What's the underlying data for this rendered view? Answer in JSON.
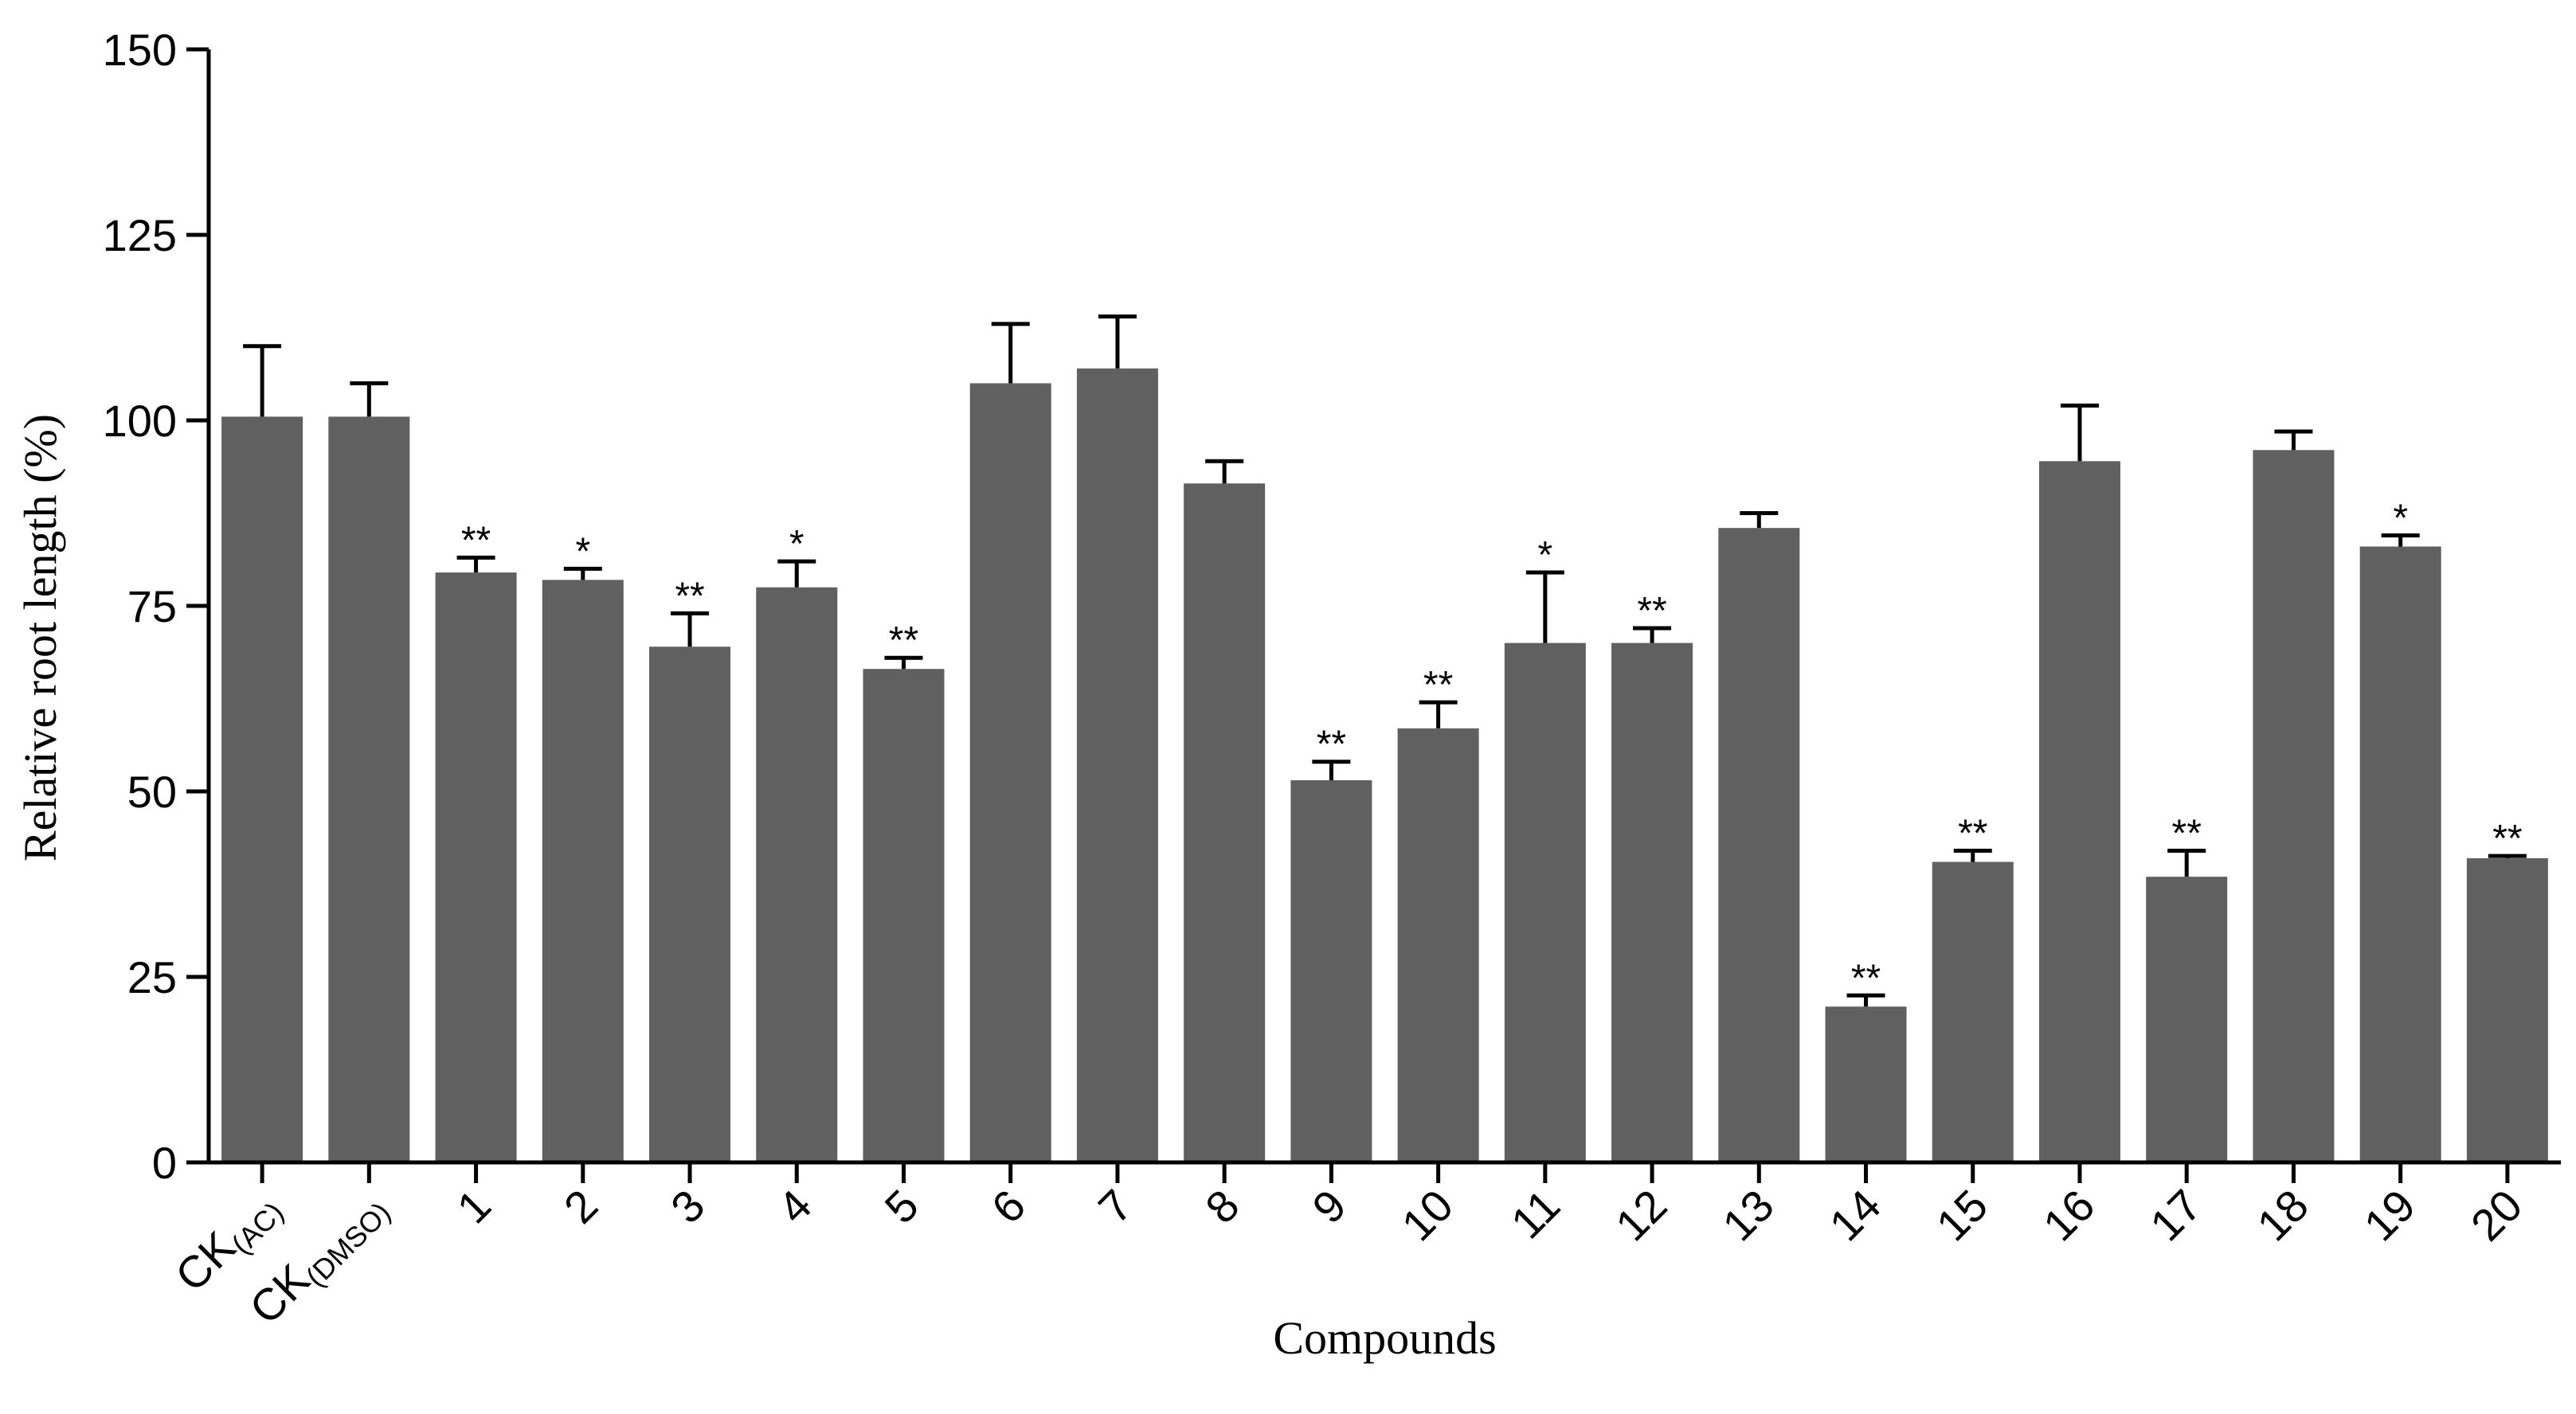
{
  "chart_data": {
    "type": "bar",
    "title": "",
    "xlabel": "Compounds",
    "ylabel": "Relative root length (%)",
    "ylim": [
      0,
      150
    ],
    "yticks": [
      0,
      25,
      50,
      75,
      100,
      125,
      150
    ],
    "grid": false,
    "bar_color": "#606060",
    "categories": [
      {
        "main": "CK",
        "sub": "(AC)"
      },
      {
        "main": "CK",
        "sub": "(DMSO)"
      },
      {
        "main": "1",
        "sub": ""
      },
      {
        "main": "2",
        "sub": ""
      },
      {
        "main": "3",
        "sub": ""
      },
      {
        "main": "4",
        "sub": ""
      },
      {
        "main": "5",
        "sub": ""
      },
      {
        "main": "6",
        "sub": ""
      },
      {
        "main": "7",
        "sub": ""
      },
      {
        "main": "8",
        "sub": ""
      },
      {
        "main": "9",
        "sub": ""
      },
      {
        "main": "10",
        "sub": ""
      },
      {
        "main": "11",
        "sub": ""
      },
      {
        "main": "12",
        "sub": ""
      },
      {
        "main": "13",
        "sub": ""
      },
      {
        "main": "14",
        "sub": ""
      },
      {
        "main": "15",
        "sub": ""
      },
      {
        "main": "16",
        "sub": ""
      },
      {
        "main": "17",
        "sub": ""
      },
      {
        "main": "18",
        "sub": ""
      },
      {
        "main": "19",
        "sub": ""
      },
      {
        "main": "20",
        "sub": ""
      }
    ],
    "values": [
      100.5,
      100.5,
      79.5,
      78.5,
      69.5,
      77.5,
      66.5,
      105,
      107,
      91.5,
      51.5,
      58.5,
      70,
      70,
      85.5,
      21,
      40.5,
      94.5,
      38.5,
      96,
      83,
      41
    ],
    "errors": [
      9.5,
      4.5,
      2.0,
      1.5,
      4.5,
      3.5,
      1.5,
      8.0,
      7.0,
      3.0,
      2.5,
      3.5,
      9.5,
      2.0,
      2.0,
      1.5,
      1.5,
      7.5,
      3.5,
      2.5,
      1.5,
      0.3
    ],
    "significance": [
      "",
      "",
      "**",
      "*",
      "**",
      "*",
      "**",
      "",
      "",
      "",
      "**",
      "**",
      "*",
      "**",
      "",
      "**",
      "**",
      "",
      "**",
      "",
      "*",
      "**"
    ]
  }
}
